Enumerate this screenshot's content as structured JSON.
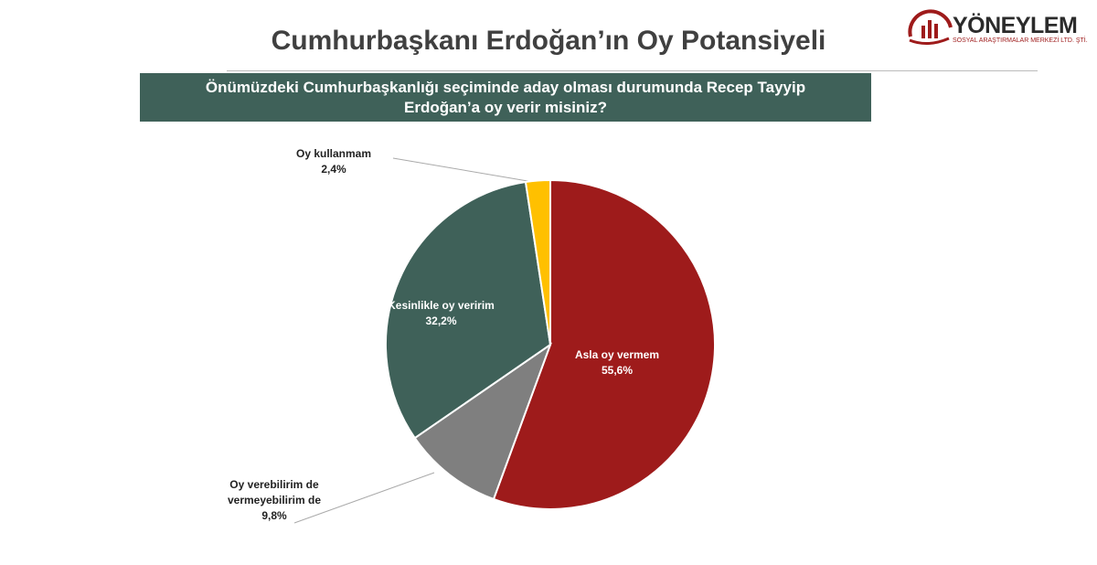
{
  "logo": {
    "name": "YÖNEYLEM",
    "tagline": "SOSYAL ARAŞTIRMALAR MERKEZİ LTD. ŞTİ."
  },
  "chart_data": {
    "type": "pie",
    "title": "Cumhurbaşkanı Erdoğan’ın Oy Potansiyeli",
    "subtitle": "Önümüzdeki Cumhurbaşkanlığı seçiminde aday olması durumunda Recep Tayyip Erdoğan’a oy verir misiniz?",
    "categories": [
      "Asla oy vermem",
      "Oy verebilirim de vermeyebilirim de",
      "Kesinlikle oy veririm",
      "Oy kullanmam"
    ],
    "values": [
      55.6,
      9.8,
      32.2,
      2.4
    ],
    "value_labels": [
      "55,6%",
      "9,8%",
      "32,2%",
      "2,4%"
    ],
    "colors": [
      "#9e1b1b",
      "#7f7f7f",
      "#3f6159",
      "#ffc000"
    ]
  }
}
